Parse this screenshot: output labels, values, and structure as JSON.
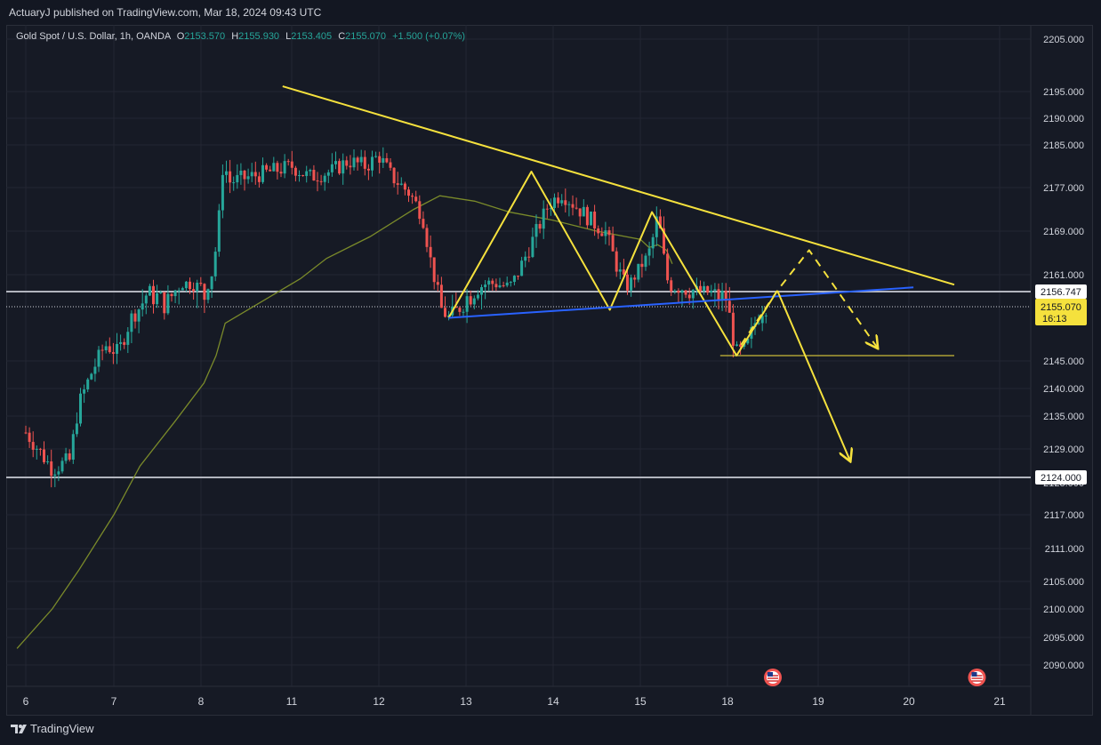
{
  "header": {
    "published_text": "ActuaryJ published on TradingView.com, Mar 18, 2024 09:43 UTC"
  },
  "legend": {
    "symbol": "Gold Spot / U.S. Dollar, 1h, OANDA",
    "open_label": "O",
    "open": "2153.570",
    "high_label": "H",
    "high": "2155.930",
    "low_label": "L",
    "low": "2153.405",
    "close_label": "C",
    "close": "2155.070",
    "change": "+1.500 (+0.07%)"
  },
  "footer": {
    "brand": "TradingView"
  },
  "colors": {
    "up": "#26a69a",
    "down": "#ef5350",
    "pattern": "#f5e13d",
    "trend_blue": "#2962ff",
    "ma": "#7a8a2a",
    "level": "#b2b5be",
    "grid": "#232632"
  },
  "icons": [
    "tradingview-logo-icon",
    "us-flag-event-icon"
  ],
  "chart_data": {
    "type": "candlestick",
    "title": "Gold Spot / U.S. Dollar, 1h, OANDA",
    "x_ticks": [
      "6",
      "7",
      "8",
      "11",
      "12",
      "13",
      "14",
      "15",
      "18",
      "19",
      "20",
      "21"
    ],
    "y_ticks": [
      "2205.000",
      "2195.000",
      "2190.000",
      "2185.000",
      "2177.000",
      "2169.000",
      "2161.000",
      "2145.000",
      "2140.000",
      "2135.000",
      "2129.000",
      "2117.000",
      "2111.000",
      "2105.000",
      "2100.000",
      "2095.000",
      "2090.000"
    ],
    "y_ticks_partial": [
      "2123.000"
    ],
    "ylim": [
      2088,
      2207
    ],
    "grid": true,
    "last_price": {
      "value": "2155.070",
      "countdown": "16:13"
    },
    "horizontal_levels": [
      {
        "label": "2156.747",
        "value": 2156.747
      },
      {
        "label": "2124.000",
        "value": 2124.0
      }
    ],
    "support_line": {
      "value": 2146
    },
    "price_path": [
      {
        "x": 6.0,
        "y": 2132
      },
      {
        "x": 6.3,
        "y": 2125.5
      },
      {
        "x": 6.5,
        "y": 2127
      },
      {
        "x": 6.6,
        "y": 2137
      },
      {
        "x": 6.75,
        "y": 2143
      },
      {
        "x": 6.9,
        "y": 2148
      },
      {
        "x": 7.05,
        "y": 2146.5
      },
      {
        "x": 7.2,
        "y": 2153
      },
      {
        "x": 7.4,
        "y": 2157
      },
      {
        "x": 7.6,
        "y": 2155
      },
      {
        "x": 7.8,
        "y": 2159
      },
      {
        "x": 8.0,
        "y": 2158
      },
      {
        "x": 8.1,
        "y": 2156
      },
      {
        "x": 8.35,
        "y": 2161
      },
      {
        "x": 8.55,
        "y": 2168
      },
      {
        "x": 8.75,
        "y": 2183
      },
      {
        "x": 8.9,
        "y": 2178
      },
      {
        "x": 11.0,
        "y": 2181
      },
      {
        "x": 11.2,
        "y": 2179
      },
      {
        "x": 11.45,
        "y": 2180
      },
      {
        "x": 11.65,
        "y": 2182
      },
      {
        "x": 11.85,
        "y": 2181
      },
      {
        "x": 12.0,
        "y": 2183
      },
      {
        "x": 12.15,
        "y": 2179
      },
      {
        "x": 12.35,
        "y": 2176
      },
      {
        "x": 12.5,
        "y": 2172
      },
      {
        "x": 12.6,
        "y": 2163
      },
      {
        "x": 12.7,
        "y": 2155
      },
      {
        "x": 12.8,
        "y": 2153
      },
      {
        "x": 13.0,
        "y": 2156
      },
      {
        "x": 13.25,
        "y": 2159
      },
      {
        "x": 13.5,
        "y": 2158
      },
      {
        "x": 13.7,
        "y": 2165
      },
      {
        "x": 13.95,
        "y": 2174
      },
      {
        "x": 14.1,
        "y": 2176
      },
      {
        "x": 14.3,
        "y": 2173
      },
      {
        "x": 14.5,
        "y": 2170
      },
      {
        "x": 14.6,
        "y": 2169
      },
      {
        "x": 14.72,
        "y": 2163
      },
      {
        "x": 14.85,
        "y": 2158
      },
      {
        "x": 14.95,
        "y": 2161
      },
      {
        "x": 15.05,
        "y": 2163
      },
      {
        "x": 15.25,
        "y": 2164
      },
      {
        "x": 15.45,
        "y": 2168
      },
      {
        "x": 15.55,
        "y": 2171
      },
      {
        "x": 15.65,
        "y": 2170
      },
      {
        "x": 15.75,
        "y": 2167
      },
      {
        "x": 15.85,
        "y": 2162
      },
      {
        "x": 16.0,
        "y": 2158
      },
      {
        "x": 18.0,
        "y": 2156
      },
      {
        "x": 18.05,
        "y": 2150
      },
      {
        "x": 18.1,
        "y": 2146.5
      },
      {
        "x": 18.2,
        "y": 2147
      },
      {
        "x": 18.3,
        "y": 2152
      },
      {
        "x": 18.4,
        "y": 2155
      },
      {
        "x": 18.45,
        "y": 2155.07
      }
    ],
    "moving_average": [
      {
        "x": 5.9,
        "y": 2093
      },
      {
        "x": 6.3,
        "y": 2100
      },
      {
        "x": 6.6,
        "y": 2107
      },
      {
        "x": 7.0,
        "y": 2117
      },
      {
        "x": 7.3,
        "y": 2126
      },
      {
        "x": 7.7,
        "y": 2134
      },
      {
        "x": 8.1,
        "y": 2141
      },
      {
        "x": 8.5,
        "y": 2146
      },
      {
        "x": 8.8,
        "y": 2152
      },
      {
        "x": 11.1,
        "y": 2160
      },
      {
        "x": 11.4,
        "y": 2164
      },
      {
        "x": 11.9,
        "y": 2168
      },
      {
        "x": 12.4,
        "y": 2173
      },
      {
        "x": 12.7,
        "y": 2175.5
      },
      {
        "x": 13.1,
        "y": 2174.5
      },
      {
        "x": 13.5,
        "y": 2172.5
      },
      {
        "x": 14.0,
        "y": 2171
      },
      {
        "x": 14.5,
        "y": 2169
      },
      {
        "x": 15.0,
        "y": 2167.5
      },
      {
        "x": 15.3,
        "y": 2166
      },
      {
        "x": 15.6,
        "y": 2166.5
      },
      {
        "x": 15.9,
        "y": 2165.5
      },
      {
        "x": 16.1,
        "y": 2163
      }
    ],
    "annotations": [
      {
        "name": "descending-trendline",
        "style": "solid",
        "color": "pattern",
        "points": [
          {
            "x": 10.7,
            "y": 2196
          },
          {
            "x": 20.5,
            "y": 2158.5
          }
        ]
      },
      {
        "name": "head-and-shoulders-pattern",
        "style": "solid",
        "color": "pattern",
        "points": [
          {
            "x": 12.8,
            "y": 2153
          },
          {
            "x": 13.75,
            "y": 2180
          },
          {
            "x": 14.65,
            "y": 2154.5
          },
          {
            "x": 15.4,
            "y": 2172.5
          },
          {
            "x": 18.1,
            "y": 2146
          },
          {
            "x": 18.55,
            "y": 2157
          }
        ]
      },
      {
        "name": "neckline",
        "style": "solid",
        "color": "trend_blue",
        "points": [
          {
            "x": 12.8,
            "y": 2153
          },
          {
            "x": 20.05,
            "y": 2157.8
          }
        ]
      },
      {
        "name": "support-line",
        "style": "solid",
        "color": "pattern",
        "points": [
          {
            "x": 17.75,
            "y": 2146
          },
          {
            "x": 20.5,
            "y": 2146
          }
        ]
      },
      {
        "name": "projected-drop",
        "style": "solid",
        "color": "pattern",
        "arrow": true,
        "points": [
          {
            "x": 18.55,
            "y": 2157
          },
          {
            "x": 19.35,
            "y": 2127
          }
        ]
      },
      {
        "name": "alternate-path",
        "style": "dashed",
        "color": "pattern",
        "arrow": true,
        "points": [
          {
            "x": 18.15,
            "y": 2148
          },
          {
            "x": 18.55,
            "y": 2157
          },
          {
            "x": 18.9,
            "y": 2165.5
          },
          {
            "x": 19.65,
            "y": 2147.5
          }
        ]
      }
    ],
    "event_markers": [
      {
        "x": 18.5
      },
      {
        "x": 20.75
      }
    ]
  }
}
